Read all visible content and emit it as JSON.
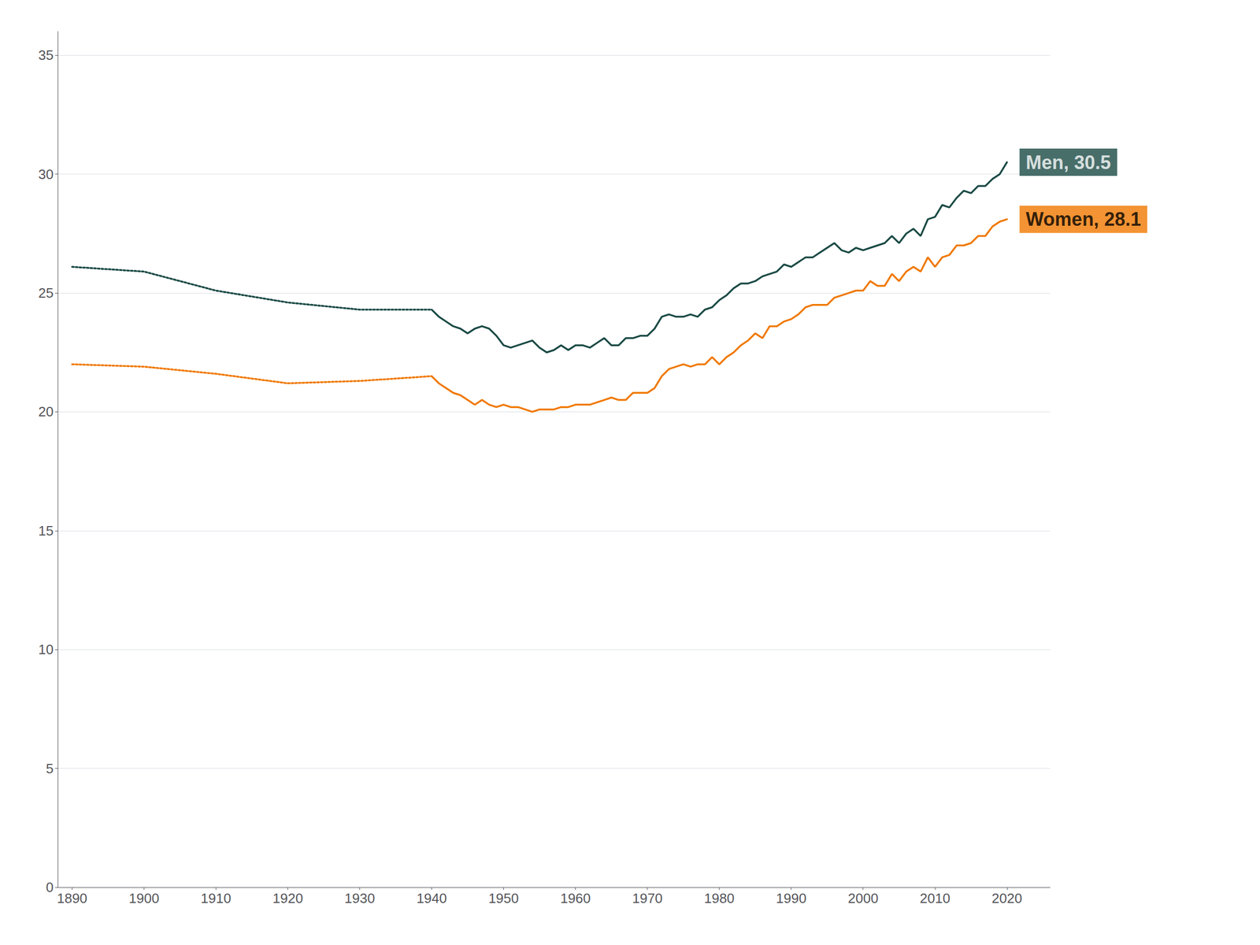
{
  "chart_data": {
    "type": "line",
    "xlim": [
      1888,
      2026
    ],
    "xticks": [
      1890,
      1900,
      1910,
      1920,
      1930,
      1940,
      1950,
      1960,
      1970,
      1980,
      1990,
      2000,
      2010,
      2020
    ],
    "ylim": [
      0,
      36
    ],
    "yticks": [
      0,
      5,
      10,
      15,
      20,
      25,
      30,
      35
    ],
    "grid": true,
    "series": [
      {
        "color": "#1a4a45",
        "line_style": "dotted",
        "x": [
          1890,
          1900,
          1910,
          1920,
          1930,
          1940
        ],
        "values": [
          26.1,
          25.9,
          25.1,
          24.6,
          24.3,
          24.3
        ]
      },
      {
        "color": "#f07800",
        "line_style": "dotted",
        "x": [
          1890,
          1900,
          1910,
          1920,
          1930,
          1940
        ],
        "values": [
          22.0,
          21.9,
          21.6,
          21.2,
          21.3,
          21.5
        ]
      },
      {
        "color": "#1a4a45",
        "line_style": "solid",
        "x": [
          1940,
          1941,
          1942,
          1943,
          1944,
          1945,
          1946,
          1947,
          1948,
          1949,
          1950,
          1951,
          1952,
          1953,
          1954,
          1955,
          1956,
          1957,
          1958,
          1959,
          1960,
          1961,
          1962,
          1963,
          1964,
          1965,
          1966,
          1967,
          1968,
          1969,
          1970,
          1971,
          1972,
          1973,
          1974,
          1975,
          1976,
          1977,
          1978,
          1979,
          1980,
          1981,
          1982,
          1983,
          1984,
          1985,
          1986,
          1987,
          1988,
          1989,
          1990,
          1991,
          1992,
          1993,
          1994,
          1995,
          1996,
          1997,
          1998,
          1999,
          2000,
          2001,
          2002,
          2003,
          2004,
          2005,
          2006,
          2007,
          2008,
          2009,
          2010,
          2011,
          2012,
          2013,
          2014,
          2015,
          2016,
          2017,
          2018,
          2019,
          2020
        ],
        "values": [
          24.3,
          24.0,
          23.8,
          23.6,
          23.5,
          23.3,
          23.5,
          23.6,
          23.5,
          23.2,
          22.8,
          22.7,
          22.8,
          22.9,
          23.0,
          22.7,
          22.5,
          22.6,
          22.8,
          22.6,
          22.8,
          22.8,
          22.7,
          22.9,
          23.1,
          22.8,
          22.8,
          23.1,
          23.1,
          23.2,
          23.2,
          23.5,
          24.0,
          24.1,
          24.0,
          24.0,
          24.1,
          24.0,
          24.3,
          24.4,
          24.7,
          24.9,
          25.2,
          25.4,
          25.4,
          25.5,
          25.7,
          25.8,
          25.9,
          26.2,
          26.1,
          26.3,
          26.5,
          26.5,
          26.7,
          26.9,
          27.1,
          26.8,
          26.7,
          26.9,
          26.8,
          26.9,
          27.0,
          27.1,
          27.4,
          27.1,
          27.5,
          27.7,
          27.4,
          28.1,
          28.2,
          28.7,
          28.6,
          29.0,
          29.3,
          29.2,
          29.5,
          29.5,
          29.8,
          30.0,
          30.5
        ]
      },
      {
        "color": "#f07800",
        "line_style": "solid",
        "x": [
          1940,
          1941,
          1942,
          1943,
          1944,
          1945,
          1946,
          1947,
          1948,
          1949,
          1950,
          1951,
          1952,
          1953,
          1954,
          1955,
          1956,
          1957,
          1958,
          1959,
          1960,
          1961,
          1962,
          1963,
          1964,
          1965,
          1966,
          1967,
          1968,
          1969,
          1970,
          1971,
          1972,
          1973,
          1974,
          1975,
          1976,
          1977,
          1978,
          1979,
          1980,
          1981,
          1982,
          1983,
          1984,
          1985,
          1986,
          1987,
          1988,
          1989,
          1990,
          1991,
          1992,
          1993,
          1994,
          1995,
          1996,
          1997,
          1998,
          1999,
          2000,
          2001,
          2002,
          2003,
          2004,
          2005,
          2006,
          2007,
          2008,
          2009,
          2010,
          2011,
          2012,
          2013,
          2014,
          2015,
          2016,
          2017,
          2018,
          2019,
          2020
        ],
        "values": [
          21.5,
          21.2,
          21.0,
          20.8,
          20.7,
          20.5,
          20.3,
          20.5,
          20.3,
          20.2,
          20.3,
          20.2,
          20.2,
          20.1,
          20.0,
          20.1,
          20.1,
          20.1,
          20.2,
          20.2,
          20.3,
          20.3,
          20.3,
          20.4,
          20.5,
          20.6,
          20.5,
          20.5,
          20.8,
          20.8,
          20.8,
          21.0,
          21.5,
          21.8,
          21.9,
          22.0,
          21.9,
          22.0,
          22.0,
          22.3,
          22.0,
          22.3,
          22.5,
          22.8,
          23.0,
          23.3,
          23.1,
          23.6,
          23.6,
          23.8,
          23.9,
          24.1,
          24.4,
          24.5,
          24.5,
          24.5,
          24.8,
          24.9,
          25.0,
          25.1,
          25.1,
          25.5,
          25.3,
          25.3,
          25.8,
          25.5,
          25.9,
          26.1,
          25.9,
          26.5,
          26.1,
          26.5,
          26.6,
          27.0,
          27.0,
          27.1,
          27.4,
          27.4,
          27.8,
          28.0,
          28.1
        ]
      }
    ],
    "annotations": [
      {
        "text": "Men, 30.5",
        "x": 2020,
        "y": 30.5,
        "color": "#ffffff",
        "background": "#1a4a45"
      },
      {
        "text": "Women, 28.1",
        "x": 2020,
        "y": 28.1,
        "color": "#000000",
        "background": "#f07800"
      }
    ]
  }
}
